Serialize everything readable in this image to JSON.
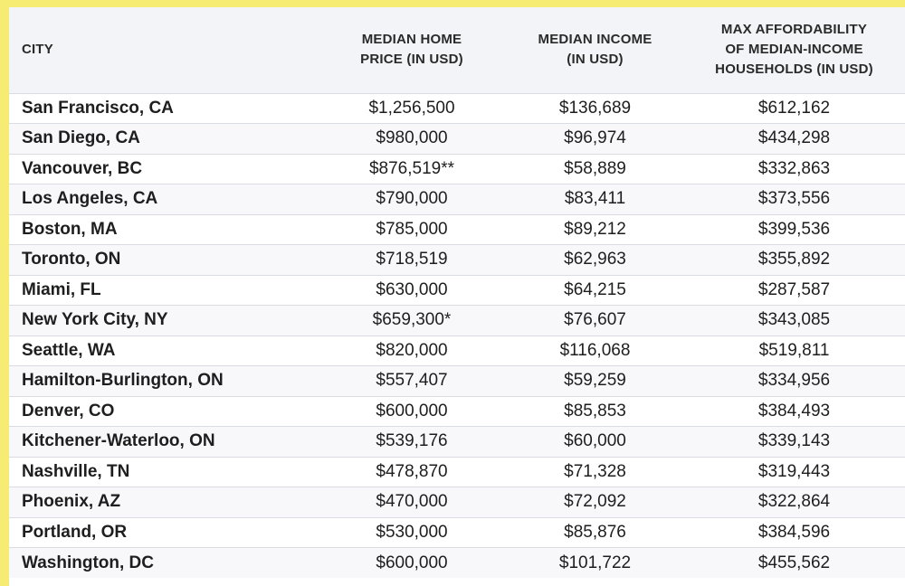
{
  "header": {
    "city": "CITY",
    "price": "MEDIAN HOME\nPRICE (IN USD)",
    "income": "MEDIAN INCOME\n(IN USD)",
    "afford": "MAX AFFORDABILITY\nOF MEDIAN-INCOME\nHOUSEHOLDS (IN USD)"
  },
  "rows": [
    {
      "city": "San Francisco, CA",
      "price": "$1,256,500",
      "income": "$136,689",
      "afford": "$612,162"
    },
    {
      "city": "San Diego, CA",
      "price": "$980,000",
      "income": "$96,974",
      "afford": "$434,298"
    },
    {
      "city": "Vancouver, BC",
      "price": "$876,519**",
      "income": "$58,889",
      "afford": "$332,863"
    },
    {
      "city": "Los Angeles, CA",
      "price": "$790,000",
      "income": "$83,411",
      "afford": "$373,556"
    },
    {
      "city": "Boston, MA",
      "price": "$785,000",
      "income": "$89,212",
      "afford": "$399,536"
    },
    {
      "city": "Toronto, ON",
      "price": "$718,519",
      "income": "$62,963",
      "afford": "$355,892"
    },
    {
      "city": "Miami, FL",
      "price": "$630,000",
      "income": "$64,215",
      "afford": "$287,587"
    },
    {
      "city": "New York City, NY",
      "price": "$659,300*",
      "income": "$76,607",
      "afford": "$343,085"
    },
    {
      "city": "Seattle, WA",
      "price": "$820,000",
      "income": "$116,068",
      "afford": "$519,811"
    },
    {
      "city": "Hamilton-Burlington, ON",
      "price": "$557,407",
      "income": "$59,259",
      "afford": "$334,956"
    },
    {
      "city": "Denver, CO",
      "price": "$600,000",
      "income": "$85,853",
      "afford": "$384,493"
    },
    {
      "city": "Kitchener-Waterloo, ON",
      "price": "$539,176",
      "income": "$60,000",
      "afford": "$339,143"
    },
    {
      "city": "Nashville, TN",
      "price": "$478,870",
      "income": "$71,328",
      "afford": "$319,443"
    },
    {
      "city": "Phoenix, AZ",
      "price": "$470,000",
      "income": "$72,092",
      "afford": "$322,864"
    },
    {
      "city": "Portland, OR",
      "price": "$530,000",
      "income": "$85,876",
      "afford": "$384,596"
    },
    {
      "city": "Washington, DC",
      "price": "$600,000",
      "income": "$101,722",
      "afford": "$455,562"
    }
  ]
}
